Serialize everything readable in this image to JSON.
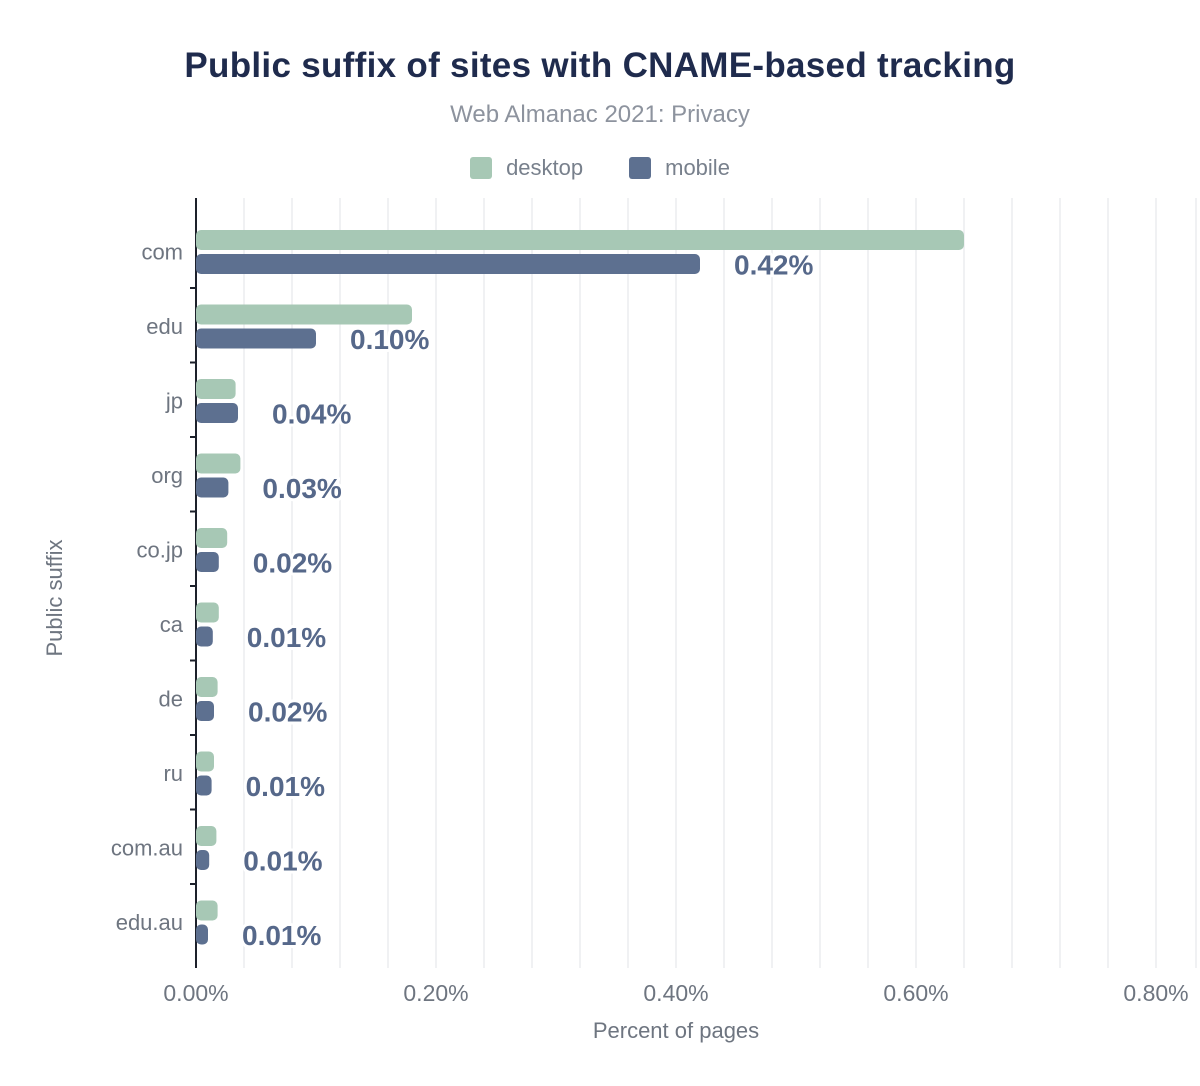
{
  "chart": {
    "title": "Public suffix of sites with CNAME-based tracking",
    "subtitle": "Web Almanac 2021: Privacy"
  },
  "chart_data": {
    "type": "bar",
    "orientation": "horizontal",
    "title": "Public suffix of sites with CNAME-based tracking",
    "subtitle": "Web Almanac 2021: Privacy",
    "xlabel": "Percent of pages",
    "ylabel": "Public suffix",
    "xlim": [
      0,
      0.8
    ],
    "grid": true,
    "grid_step": 0.04,
    "legend_position": "top",
    "xtick_values": [
      0,
      0.2,
      0.4,
      0.6,
      0.8
    ],
    "xtick_labels": [
      "0.00%",
      "0.20%",
      "0.40%",
      "0.60%",
      "0.80%"
    ],
    "categories": [
      "com",
      "edu",
      "jp",
      "org",
      "co.jp",
      "ca",
      "de",
      "ru",
      "com.au",
      "edu.au"
    ],
    "series": [
      {
        "name": "desktop",
        "color": "#a7c8b5",
        "values": [
          0.64,
          0.18,
          0.033,
          0.037,
          0.026,
          0.019,
          0.018,
          0.015,
          0.017,
          0.018
        ]
      },
      {
        "name": "mobile",
        "color": "#5d7090",
        "values": [
          0.42,
          0.1,
          0.035,
          0.027,
          0.019,
          0.014,
          0.015,
          0.013,
          0.011,
          0.01
        ]
      }
    ],
    "data_labels": {
      "series": "mobile",
      "values": [
        "0.42%",
        "0.10%",
        "0.04%",
        "0.03%",
        "0.02%",
        "0.01%",
        "0.02%",
        "0.01%",
        "0.01%",
        "0.01%"
      ]
    }
  },
  "colors": {
    "title": "#1f2b4d",
    "subtitle": "#8d939e",
    "legend_text": "#78808c",
    "axis_text": "#6e7580",
    "data_label": "#56688a",
    "data_label_halo": "#ffffff",
    "axis_line": "#1d212b",
    "gridline": "#f0f1f3",
    "background": "#ffffff"
  }
}
